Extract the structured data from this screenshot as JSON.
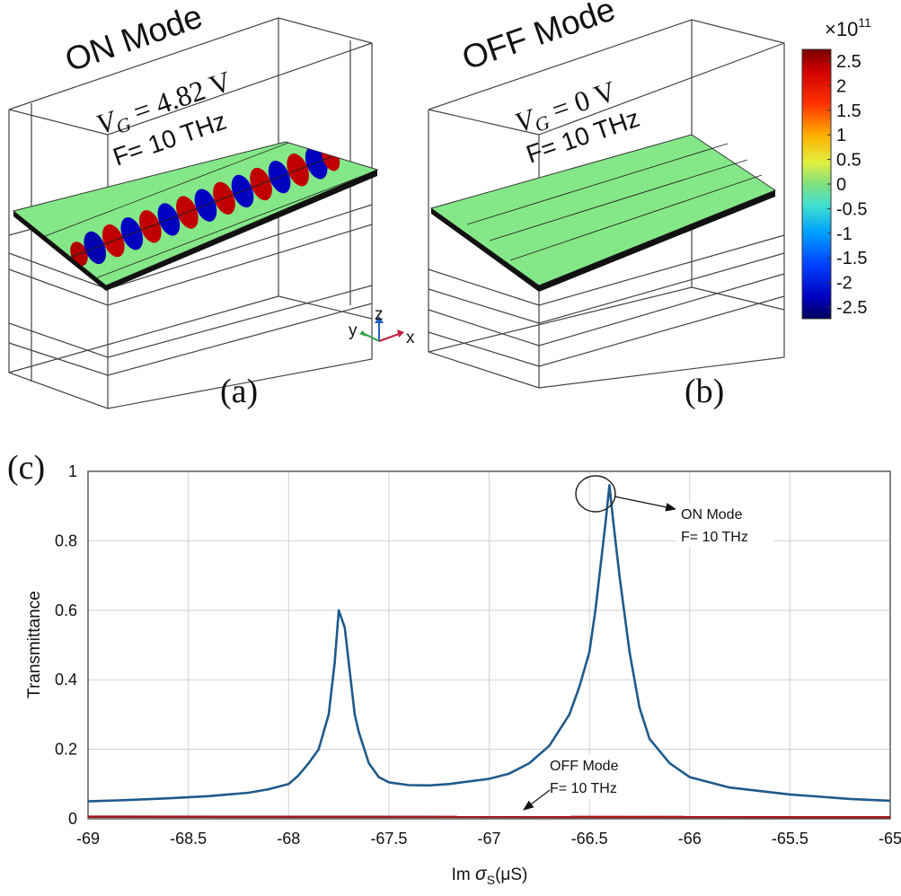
{
  "panel_a": {
    "title": "ON Mode",
    "vg_symbol": "V",
    "vg_sub": "G",
    "vg_value": "= 4.82 V",
    "freq": "F= 10 THz",
    "label": "(a)"
  },
  "panel_b": {
    "title": "OFF Mode",
    "vg_symbol": "V",
    "vg_sub": "G",
    "vg_value": "= 0 V",
    "freq": "F= 10 THz",
    "label": "(b)"
  },
  "axes_triad": {
    "x": "x",
    "y": "y",
    "z": "z"
  },
  "colorbar": {
    "multiplier_base": "×10",
    "multiplier_exp": "11",
    "ticks": [
      "2.5",
      "2",
      "1.5",
      "1",
      "0.5",
      "0",
      "-0.5",
      "-1",
      "-1.5",
      "-2",
      "-2.5"
    ],
    "range": [
      -2.5,
      2.5
    ],
    "colors": {
      "top": "#8b0000",
      "high": "#ff0000",
      "mid_high": "#ffd700",
      "mid": "#80e080",
      "mid_low": "#00c8ff",
      "low": "#0000ff",
      "bottom": "#00008b"
    }
  },
  "colors": {
    "on_series": "#1f5a8a",
    "off_series": "#a01818",
    "grid": "#d0d0d0",
    "field_bg": "#85e888"
  },
  "chart_data": {
    "type": "line",
    "panel_label": "(c)",
    "xlabel": "Im σS(μS)",
    "xlabel_parts": {
      "pre": "Im ",
      "sigma": "σ",
      "sub": "S",
      "post": "(μS)"
    },
    "ylabel": "Transmittance",
    "xlim": [
      -69,
      -65
    ],
    "ylim": [
      0,
      1
    ],
    "xticks": [
      -69,
      -68.5,
      -68,
      -67.5,
      -67,
      -66.5,
      -66,
      -65.5,
      -65
    ],
    "xtick_labels": [
      "-69",
      "-68.5",
      "-68",
      "-67.5",
      "-67",
      "-66.5",
      "-66",
      "-65.5",
      "-65"
    ],
    "yticks": [
      0,
      0.2,
      0.4,
      0.6,
      0.8,
      1
    ],
    "ytick_labels": [
      "0",
      "0.2",
      "0.4",
      "0.6",
      "0.8",
      "1"
    ],
    "grid": true,
    "series": [
      {
        "x": [
          -69,
          -68.8,
          -68.6,
          -68.4,
          -68.2,
          -68.1,
          -68.0,
          -67.95,
          -67.9,
          -67.85,
          -67.8,
          -67.77,
          -67.75,
          -67.72,
          -67.7,
          -67.67,
          -67.65,
          -67.6,
          -67.55,
          -67.5,
          -67.4,
          -67.3,
          -67.2,
          -67.0,
          -66.9,
          -66.8,
          -66.7,
          -66.6,
          -66.55,
          -66.5,
          -66.47,
          -66.45,
          -66.42,
          -66.4,
          -66.38,
          -66.35,
          -66.3,
          -66.25,
          -66.2,
          -66.1,
          -66.0,
          -65.8,
          -65.5,
          -65.2,
          -65.0
        ],
        "values": [
          0.05,
          0.054,
          0.059,
          0.065,
          0.075,
          0.085,
          0.1,
          0.125,
          0.16,
          0.2,
          0.3,
          0.45,
          0.6,
          0.55,
          0.45,
          0.3,
          0.25,
          0.16,
          0.12,
          0.105,
          0.097,
          0.096,
          0.1,
          0.115,
          0.13,
          0.16,
          0.21,
          0.3,
          0.38,
          0.48,
          0.6,
          0.7,
          0.85,
          0.96,
          0.85,
          0.7,
          0.48,
          0.32,
          0.23,
          0.16,
          0.12,
          0.09,
          0.07,
          0.057,
          0.052
        ]
      },
      {
        "x": [
          -69,
          -65
        ],
        "values": [
          0.006,
          0.005
        ]
      }
    ],
    "annotations": [
      {
        "line1": "ON Mode",
        "line2": "F= 10 THz"
      },
      {
        "line1": "OFF Mode",
        "line2": "F= 10 THz"
      }
    ]
  }
}
